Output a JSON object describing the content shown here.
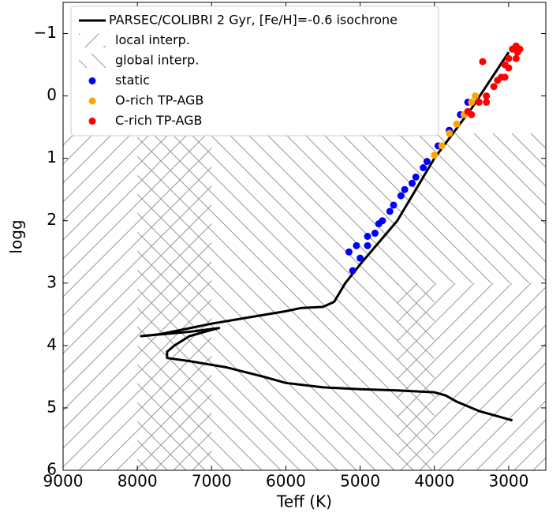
{
  "chart_data": {
    "type": "scatter",
    "xlabel": "Teff (K)",
    "ylabel": "logg",
    "xlim": [
      9000,
      2500
    ],
    "ylim": [
      6,
      -1.5
    ],
    "xticks": [
      9000,
      8000,
      7000,
      6000,
      5000,
      4000,
      3000
    ],
    "yticks": [
      {
        "value": -1,
        "label": "−1"
      },
      0,
      1,
      2,
      3,
      4,
      5,
      6
    ],
    "regions": [
      {
        "name": "local interp.",
        "hatch": "/",
        "color": "#999999",
        "rects": [
          {
            "x": [
              9000,
              7000
            ],
            "y": [
              0.6,
              6
            ]
          },
          {
            "x": [
              4500,
              2500
            ],
            "y": [
              3,
              6
            ]
          }
        ]
      },
      {
        "name": "global interp.",
        "hatch": "\\",
        "color": "#999999",
        "rects": [
          {
            "x": [
              8000,
              4000
            ],
            "y": [
              0.6,
              6
            ]
          },
          {
            "x": [
              4000,
              2500
            ],
            "y": [
              0.6,
              3
            ]
          }
        ]
      }
    ],
    "line": {
      "name": "PARSEC/COLIBRI 2 Gyr, [Fe/H]=-0.6 isochrone",
      "color": "#000000",
      "x": [
        2950,
        3400,
        3700,
        3850,
        4000,
        4500,
        5000,
        5500,
        6000,
        6300,
        6800,
        7300,
        7600,
        7600,
        7500,
        7300,
        7000,
        6900,
        7300,
        7950,
        7700,
        7000,
        6500,
        6000,
        5800,
        5500,
        5350,
        5200,
        5000,
        4500,
        4000,
        3500,
        3000
      ],
      "values": [
        5.2,
        5.05,
        4.9,
        4.8,
        4.75,
        4.72,
        4.7,
        4.67,
        4.6,
        4.5,
        4.35,
        4.25,
        4.2,
        4.1,
        4.0,
        3.85,
        3.75,
        3.72,
        3.78,
        3.85,
        3.82,
        3.65,
        3.55,
        3.45,
        3.4,
        3.38,
        3.3,
        3.0,
        2.7,
        2.0,
        1.0,
        0.2,
        -0.7
      ]
    },
    "series": [
      {
        "name": "static",
        "color": "#0000ff",
        "x": [
          5150,
          5050,
          4900,
          4750,
          4600,
          4450,
          4300,
          4150,
          5100,
          5000,
          4900,
          4800,
          4700,
          4550,
          4400,
          4250,
          4100,
          3950,
          3800,
          3650,
          3550
        ],
        "values": [
          2.5,
          2.4,
          2.25,
          2.05,
          1.85,
          1.6,
          1.4,
          1.15,
          2.8,
          2.6,
          2.4,
          2.2,
          2.0,
          1.75,
          1.5,
          1.3,
          1.05,
          0.8,
          0.55,
          0.3,
          0.1
        ]
      },
      {
        "name": "O-rich TP-AGB",
        "color": "#ffa500",
        "x": [
          4000,
          3900,
          3800,
          3700,
          3600,
          3500,
          3450
        ],
        "values": [
          0.95,
          0.8,
          0.6,
          0.45,
          0.3,
          0.1,
          0.0
        ]
      },
      {
        "name": "C-rich TP-AGB",
        "color": "#ff0000",
        "x": [
          3550,
          3500,
          3300,
          3350,
          3200,
          3100,
          3050,
          3000,
          2950,
          2900,
          2850,
          2900,
          3050,
          3150,
          3300,
          3400,
          3000,
          2880
        ],
        "values": [
          0.25,
          0.3,
          0.1,
          -0.55,
          -0.15,
          -0.3,
          -0.5,
          -0.6,
          -0.75,
          -0.8,
          -0.75,
          -0.6,
          -0.3,
          -0.25,
          0.0,
          0.1,
          -0.45,
          -0.7
        ]
      }
    ]
  }
}
